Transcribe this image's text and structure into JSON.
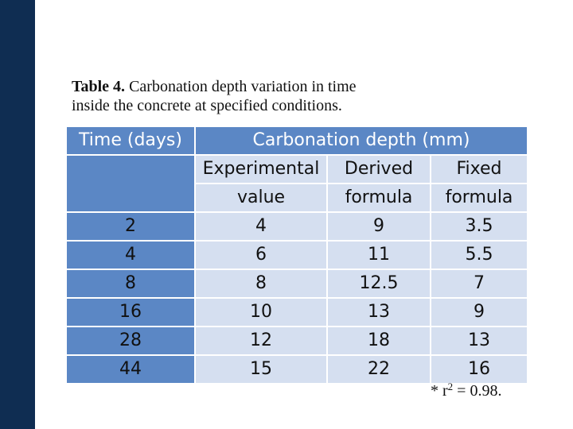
{
  "caption": {
    "label": "Table 4.",
    "text_line1": "Carbonation depth variation in time",
    "text_line2": "inside the concrete at specified conditions."
  },
  "table": {
    "header_time": "Time (days)",
    "header_depth": "Carbonation depth (mm)",
    "sub_headers": [
      {
        "line1": "Experimental",
        "line2": "value"
      },
      {
        "line1": "Derived",
        "line2": "formula"
      },
      {
        "line1": "Fixed",
        "line2": "formula"
      }
    ],
    "rows": [
      {
        "time": "2",
        "experimental": "4",
        "derived": "9",
        "fixed": "3.5"
      },
      {
        "time": "4",
        "experimental": "6",
        "derived": "11",
        "fixed": "5.5"
      },
      {
        "time": "8",
        "experimental": "8",
        "derived": "12.5",
        "fixed": "7"
      },
      {
        "time": "16",
        "experimental": "10",
        "derived": "13",
        "fixed": "9"
      },
      {
        "time": "28",
        "experimental": "12",
        "derived": "18",
        "fixed": "13"
      },
      {
        "time": "44",
        "experimental": "15",
        "derived": "22",
        "fixed": "16"
      }
    ]
  },
  "footnote": {
    "prefix": "* r",
    "exponent": "2",
    "suffix": " = 0.98."
  },
  "colors": {
    "side_bar": "#0f2d52",
    "header_blue": "#5b87c5",
    "cell_light": "#d5dff0"
  }
}
